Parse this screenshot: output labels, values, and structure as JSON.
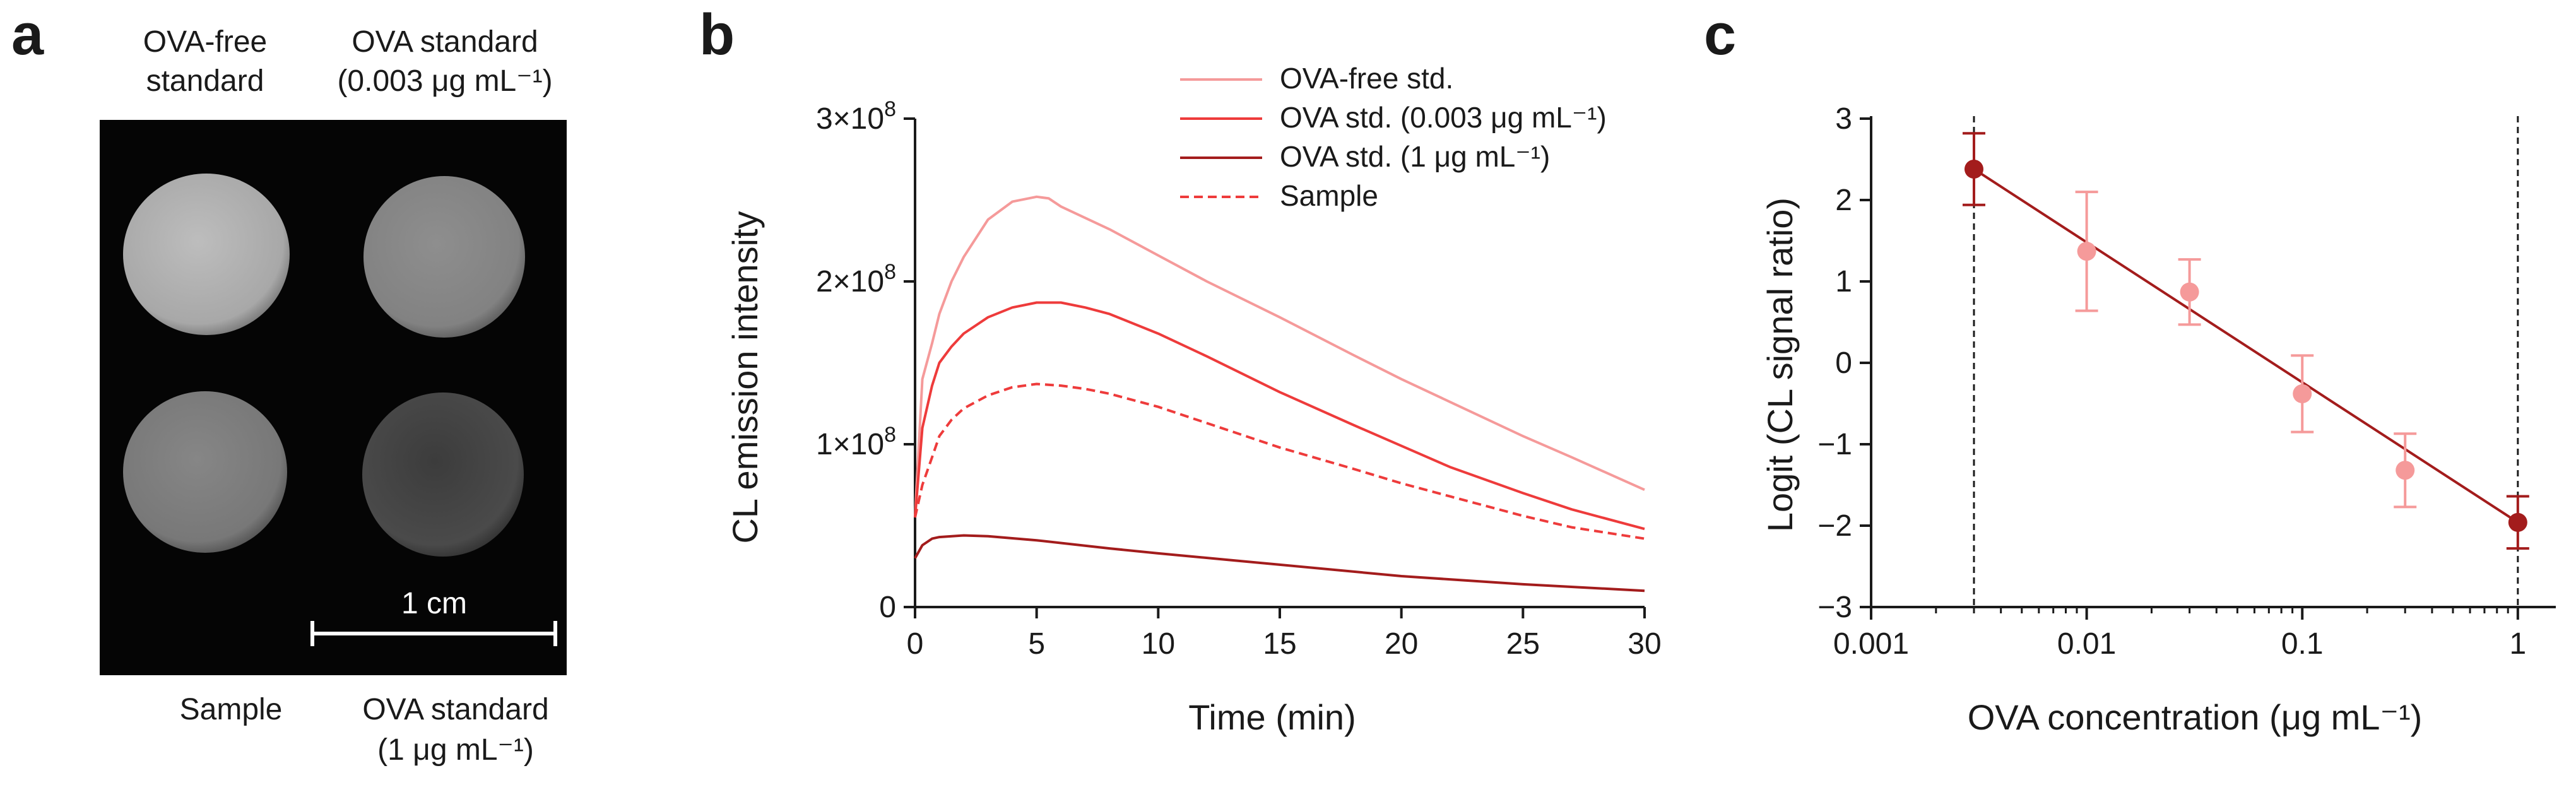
{
  "panel_letters": [
    "a",
    "b",
    "c"
  ],
  "panel_a": {
    "well_labels": {
      "top_left": [
        "OVA-free",
        "standard"
      ],
      "top_right": [
        "OVA standard",
        "(0.003 μg mL⁻¹)"
      ],
      "bottom_left": [
        "Sample"
      ],
      "bottom_right": [
        "OVA standard",
        "(1 μg mL⁻¹)"
      ]
    },
    "scale_bar": "1 cm",
    "wells": [
      {
        "name": "OVA-free standard",
        "brightness": 0.68
      },
      {
        "name": "OVA standard 0.003",
        "brightness": 0.52
      },
      {
        "name": "Sample",
        "brightness": 0.48
      },
      {
        "name": "OVA standard 1",
        "brightness": 0.26
      }
    ]
  },
  "chart_data": [
    {
      "type": "line",
      "title": "",
      "xlabel": "Time (min)",
      "ylabel": "CL emission intensity",
      "xlim": [
        0,
        30
      ],
      "ylim": [
        0,
        300000000
      ],
      "xticks": [
        "0",
        "5",
        "10",
        "15",
        "20",
        "25",
        "30"
      ],
      "yticks": [
        {
          "value": 0,
          "label": "0"
        },
        {
          "value": 100000000,
          "label": "1×10",
          "exp": "8"
        },
        {
          "value": 200000000,
          "label": "2×10",
          "exp": "8"
        },
        {
          "value": 300000000,
          "label": "3×10",
          "exp": "8"
        }
      ],
      "legend_position": "top-right",
      "series": [
        {
          "name": "OVA-free std.",
          "color": "#f59a9a",
          "dash": false,
          "x": [
            0,
            0.3,
            0.7,
            1,
            1.5,
            2,
            3,
            4,
            5,
            5.5,
            6,
            8,
            10,
            12,
            15,
            18,
            20,
            22,
            25,
            27,
            30
          ],
          "y": [
            56000000,
            140000000,
            162000000,
            180000000,
            200000000,
            215000000,
            238000000,
            249000000,
            252000000,
            251000000,
            246000000,
            232000000,
            216000000,
            200000000,
            178000000,
            155000000,
            140000000,
            126000000,
            105000000,
            92000000,
            72000000
          ]
        },
        {
          "name": "OVA std. (0.003 μg mL⁻¹)",
          "color": "#ee3b3b",
          "dash": false,
          "x": [
            0,
            0.3,
            0.7,
            1,
            1.5,
            2,
            3,
            4,
            5,
            6,
            7,
            8,
            10,
            12,
            15,
            18,
            20,
            22,
            25,
            27,
            30
          ],
          "y": [
            55000000,
            110000000,
            136000000,
            150000000,
            160000000,
            168000000,
            178000000,
            184000000,
            187000000,
            187000000,
            184000000,
            180000000,
            168000000,
            154000000,
            132000000,
            112000000,
            99000000,
            86000000,
            70000000,
            60000000,
            48000000
          ]
        },
        {
          "name": "OVA std. (1 μg mL⁻¹)",
          "color": "#a31c1c",
          "dash": false,
          "x": [
            0,
            0.3,
            0.7,
            1,
            2,
            3,
            5,
            8,
            10,
            15,
            20,
            25,
            30
          ],
          "y": [
            30000000,
            38000000,
            42000000,
            43000000,
            44000000,
            43500000,
            41000000,
            36000000,
            33000000,
            26000000,
            19000000,
            14000000,
            10000000
          ]
        },
        {
          "name": "Sample",
          "color": "#ee3b3b",
          "dash": true,
          "x": [
            0,
            0.3,
            0.7,
            1,
            1.5,
            2,
            3,
            4,
            5,
            6,
            7,
            8,
            10,
            12,
            15,
            18,
            20,
            22,
            25,
            27,
            30
          ],
          "y": [
            55000000,
            75000000,
            92000000,
            105000000,
            115000000,
            122000000,
            130000000,
            135000000,
            137000000,
            136000000,
            134000000,
            131000000,
            123000000,
            113000000,
            98000000,
            85000000,
            76000000,
            68000000,
            56000000,
            49000000,
            42000000
          ]
        }
      ]
    },
    {
      "type": "scatter",
      "title": "",
      "xlabel": "OVA concentration (μg mL⁻¹)",
      "ylabel": "Logit (CL signal ratio)",
      "xscale": "log",
      "xlim": [
        0.001,
        1.5
      ],
      "ylim": [
        -3,
        3
      ],
      "xticks": [
        {
          "value": 0.001,
          "label": "0.001"
        },
        {
          "value": 0.01,
          "label": "0.01"
        },
        {
          "value": 0.1,
          "label": "0.1"
        },
        {
          "value": 1,
          "label": "1"
        }
      ],
      "yticks": [
        {
          "value": 3,
          "label": "3"
        },
        {
          "value": 2,
          "label": "2"
        },
        {
          "value": 1,
          "label": "1"
        },
        {
          "value": 0,
          "label": "0"
        },
        {
          "value": -1,
          "label": "−1"
        },
        {
          "value": -2,
          "label": "−2"
        },
        {
          "value": -3,
          "label": "−3"
        }
      ],
      "vlines": [
        0.003,
        1
      ],
      "fit_line": {
        "x": [
          0.003,
          1
        ],
        "y": [
          2.38,
          -1.96
        ],
        "color": "#a31c1c"
      },
      "points": [
        {
          "x": 0.003,
          "y": 2.38,
          "err": 0.44,
          "color": "#a31c1c"
        },
        {
          "x": 0.01,
          "y": 1.37,
          "err": 0.73,
          "color": "#f59a9a"
        },
        {
          "x": 0.03,
          "y": 0.87,
          "err": 0.4,
          "color": "#f59a9a"
        },
        {
          "x": 0.1,
          "y": -0.38,
          "err": 0.47,
          "color": "#f59a9a"
        },
        {
          "x": 0.3,
          "y": -1.32,
          "err": 0.45,
          "color": "#f59a9a"
        },
        {
          "x": 1,
          "y": -1.96,
          "err": 0.32,
          "color": "#a31c1c"
        }
      ]
    }
  ]
}
